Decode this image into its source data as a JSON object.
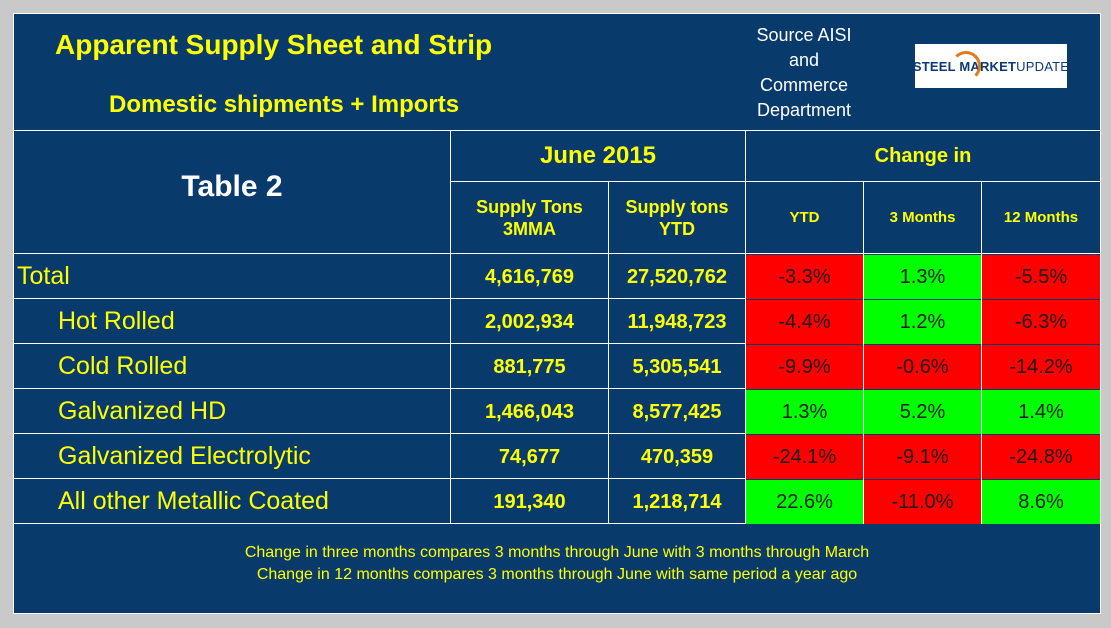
{
  "header": {
    "title": "Apparent Supply Sheet and Strip",
    "subtitle": "Domestic shipments + Imports",
    "source_lines": [
      "Source AISI",
      "and",
      "Commerce",
      "Department"
    ],
    "logo_text_bold": "STEEL MARKET",
    "logo_text_regular": " UPDATE"
  },
  "table": {
    "name": "Table 2",
    "period": "June 2015",
    "change_in": "Change in",
    "col_supply_3mma": [
      "Supply Tons",
      "3MMA"
    ],
    "col_supply_ytd": [
      "Supply tons",
      "YTD"
    ],
    "col_ytd": "YTD",
    "col_3m": "3 Months",
    "col_12m": "12 Months",
    "rows": [
      {
        "label": "Total",
        "mma": "4,616,769",
        "ytd_tons": "27,520,762",
        "ytd": "-3.3%",
        "m3": "1.3%",
        "m12": "-5.5%"
      },
      {
        "label": "Hot Rolled",
        "mma": "2,002,934",
        "ytd_tons": "11,948,723",
        "ytd": "-4.4%",
        "m3": "1.2%",
        "m12": "-6.3%"
      },
      {
        "label": "Cold Rolled",
        "mma": "881,775",
        "ytd_tons": "5,305,541",
        "ytd": "-9.9%",
        "m3": "-0.6%",
        "m12": "-14.2%"
      },
      {
        "label": "Galvanized HD",
        "mma": "1,466,043",
        "ytd_tons": "8,577,425",
        "ytd": "1.3%",
        "m3": "5.2%",
        "m12": "1.4%"
      },
      {
        "label": "Galvanized Electrolytic",
        "mma": "74,677",
        "ytd_tons": "470,359",
        "ytd": "-24.1%",
        "m3": "-9.1%",
        "m12": "-24.8%"
      },
      {
        "label": "All other Metallic Coated",
        "mma": "191,340",
        "ytd_tons": "1,218,714",
        "ytd": "22.6%",
        "m3": "-11.0%",
        "m12": "8.6%"
      }
    ]
  },
  "footer": {
    "line1": "Change in three months compares 3 months through June with 3 months through March",
    "line2": "Change in 12 months compares 3 months through June with same period a year ago"
  },
  "colors": {
    "positive": "#00ff00",
    "negative": "#ff0000",
    "background": "#083b6c",
    "text": "#ffff00"
  }
}
